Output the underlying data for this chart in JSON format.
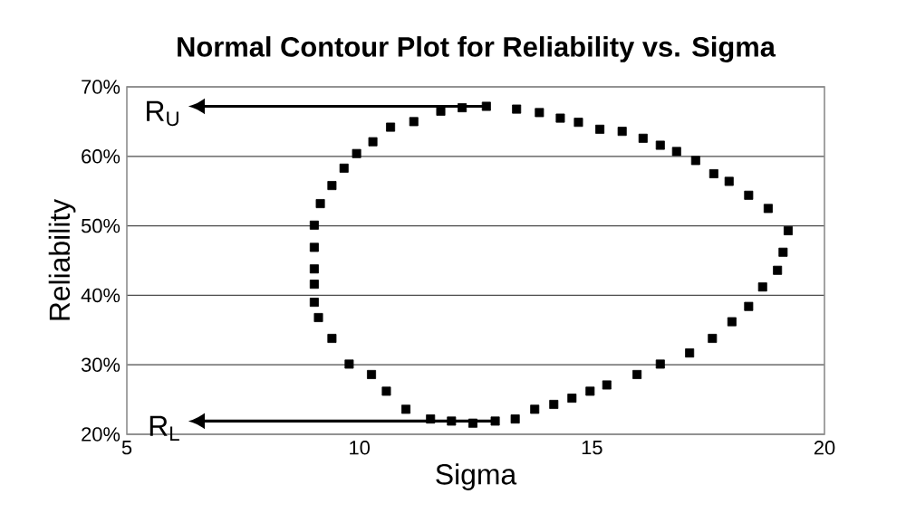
{
  "chart_data": {
    "type": "scatter",
    "title": "Normal Contour Plot for Reliability vs. Sigma",
    "xlabel": "Sigma",
    "ylabel": "Reliability",
    "marker": "square",
    "color": "#000000",
    "grid": "y",
    "xlim": [
      5,
      20
    ],
    "xticks": [
      5,
      10,
      15,
      20
    ],
    "ylim": [
      20,
      70
    ],
    "yticks": [
      {
        "value": 20,
        "label": "20%"
      },
      {
        "value": 30,
        "label": "30%"
      },
      {
        "value": 40,
        "label": "40%"
      },
      {
        "value": 50,
        "label": "50%"
      },
      {
        "value": 60,
        "label": "60%"
      },
      {
        "value": 70,
        "label": "70%"
      }
    ],
    "x": [
      12.73,
      12.21,
      11.75,
      11.17,
      10.67,
      10.29,
      9.94,
      9.67,
      9.41,
      9.16,
      9.03,
      9.03,
      9.03,
      9.03,
      9.03,
      9.12,
      9.41,
      9.78,
      10.26,
      10.58,
      11.0,
      11.53,
      11.98,
      12.44,
      12.92,
      13.35,
      13.77,
      14.18,
      14.57,
      14.96,
      15.32,
      15.97,
      16.47,
      17.1,
      17.59,
      18.01,
      18.37,
      18.67,
      18.99,
      19.11,
      19.22,
      18.79,
      18.37,
      17.95,
      17.62,
      17.23,
      16.82,
      16.47,
      16.1,
      15.65,
      15.17,
      14.71,
      14.32,
      13.87,
      13.38
    ],
    "values": [
      67.2,
      67.0,
      66.5,
      65.0,
      64.2,
      62.1,
      60.4,
      58.3,
      55.8,
      53.2,
      50.1,
      46.9,
      43.8,
      41.6,
      39.0,
      36.8,
      33.8,
      30.1,
      28.6,
      26.2,
      23.6,
      22.2,
      21.9,
      21.6,
      21.9,
      22.2,
      23.6,
      24.3,
      25.2,
      26.2,
      27.1,
      28.6,
      30.1,
      31.7,
      33.8,
      36.2,
      38.4,
      41.2,
      43.6,
      46.2,
      49.3,
      52.5,
      54.4,
      56.4,
      57.5,
      59.4,
      60.7,
      61.6,
      62.6,
      63.6,
      63.9,
      64.9,
      65.5,
      66.3,
      66.8
    ],
    "ref_lines": [
      {
        "axis": "y",
        "value": 67.2,
        "label": "R$_{U}$",
        "color": "#000000"
      },
      {
        "axis": "y",
        "value": 21.9,
        "label": "R$_{L}$",
        "color": "#000000"
      }
    ]
  }
}
